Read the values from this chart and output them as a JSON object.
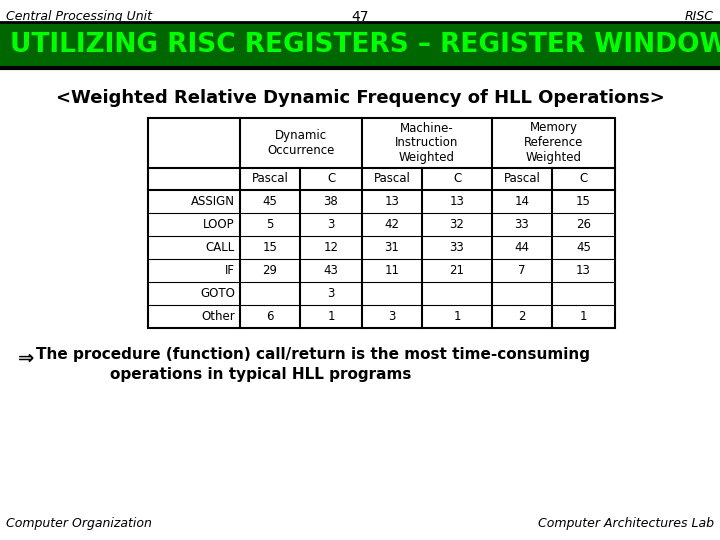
{
  "title_header": "UTILIZING RISC REGISTERS – REGISTER WINDOW",
  "header_bg": "#006600",
  "header_text_color": "#00ff00",
  "top_left": "Central Processing Unit",
  "top_center": "47",
  "top_right": "RISC",
  "bottom_left": "Computer Organization",
  "bottom_right": "Computer Architectures Lab",
  "subtitle": "<Weighted Relative Dynamic Frequency of HLL Operations>",
  "col_groups": [
    "Dynamic\nOccurrence",
    "Machine-\nInstruction\nWeighted",
    "Memory\nReference\nWeighted"
  ],
  "rows": [
    {
      "label": "ASSIGN",
      "vals": [
        "45",
        "38",
        "13",
        "13",
        "14",
        "15"
      ]
    },
    {
      "label": "LOOP",
      "vals": [
        "5",
        "3",
        "42",
        "32",
        "33",
        "26"
      ]
    },
    {
      "label": "CALL",
      "vals": [
        "15",
        "12",
        "31",
        "33",
        "44",
        "45"
      ]
    },
    {
      "label": "IF",
      "vals": [
        "29",
        "43",
        "11",
        "21",
        "7",
        "13"
      ]
    },
    {
      "label": "GOTO",
      "vals": [
        "",
        "3",
        "",
        "",
        "",
        ""
      ]
    },
    {
      "label": "Other",
      "vals": [
        "6",
        "1",
        "3",
        "1",
        "2",
        "1"
      ]
    }
  ],
  "bg_color": "#ffffff"
}
